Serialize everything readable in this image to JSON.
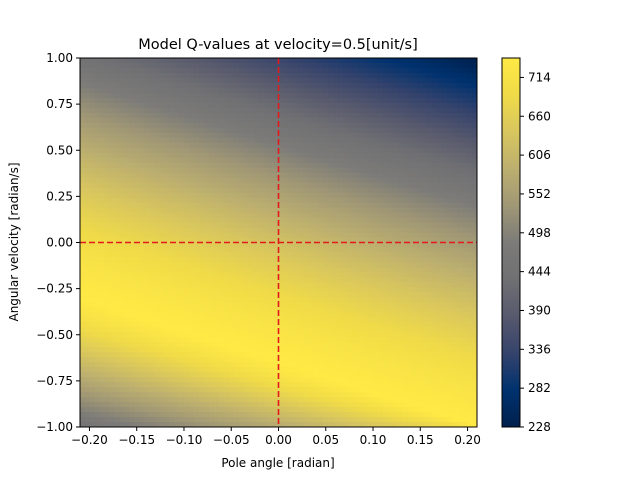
{
  "chart_data": {
    "type": "heatmap",
    "title": "Model Q-values at velocity=0.5[unit/s]",
    "xlabel": "Pole angle [radian]",
    "ylabel": "Angular velocity [radian/s]",
    "xlim": [
      -0.21,
      0.21
    ],
    "ylim": [
      -1.0,
      1.0
    ],
    "x_ticks": [
      "-0.20",
      "-0.15",
      "-0.10",
      "-0.05",
      "0.00",
      "0.05",
      "0.10",
      "0.15",
      "0.20"
    ],
    "x_tick_values": [
      -0.2,
      -0.15,
      -0.1,
      -0.05,
      0.0,
      0.05,
      0.1,
      0.15,
      0.2
    ],
    "y_ticks": [
      "-1.00",
      "-0.75",
      "-0.50",
      "-0.25",
      "0.00",
      "0.25",
      "0.50",
      "0.75",
      "1.00"
    ],
    "y_tick_values": [
      -1.0,
      -0.75,
      -0.5,
      -0.25,
      0.0,
      0.25,
      0.5,
      0.75,
      1.0
    ],
    "colormap": "cividis",
    "colorbar": {
      "range": [
        228,
        741
      ],
      "ticks": [
        "228",
        "282",
        "336",
        "390",
        "444",
        "498",
        "552",
        "606",
        "660",
        "714"
      ],
      "tick_values": [
        228,
        282,
        336,
        390,
        444,
        498,
        552,
        606,
        660,
        714
      ]
    },
    "corner_values": {
      "top_left": 445,
      "top_right": 228,
      "bottom_left": 450,
      "bottom_right": 700,
      "center": 590
    },
    "max_value": 741,
    "max_band_y_at_x_min": -0.3,
    "max_band_y_at_x_max": -1.0,
    "reference_lines": [
      {
        "orientation": "vertical",
        "x": 0.0,
        "color": "#e31a1c",
        "style": "dashed"
      },
      {
        "orientation": "horizontal",
        "y": 0.0,
        "color": "#e31a1c",
        "style": "dashed"
      }
    ]
  }
}
